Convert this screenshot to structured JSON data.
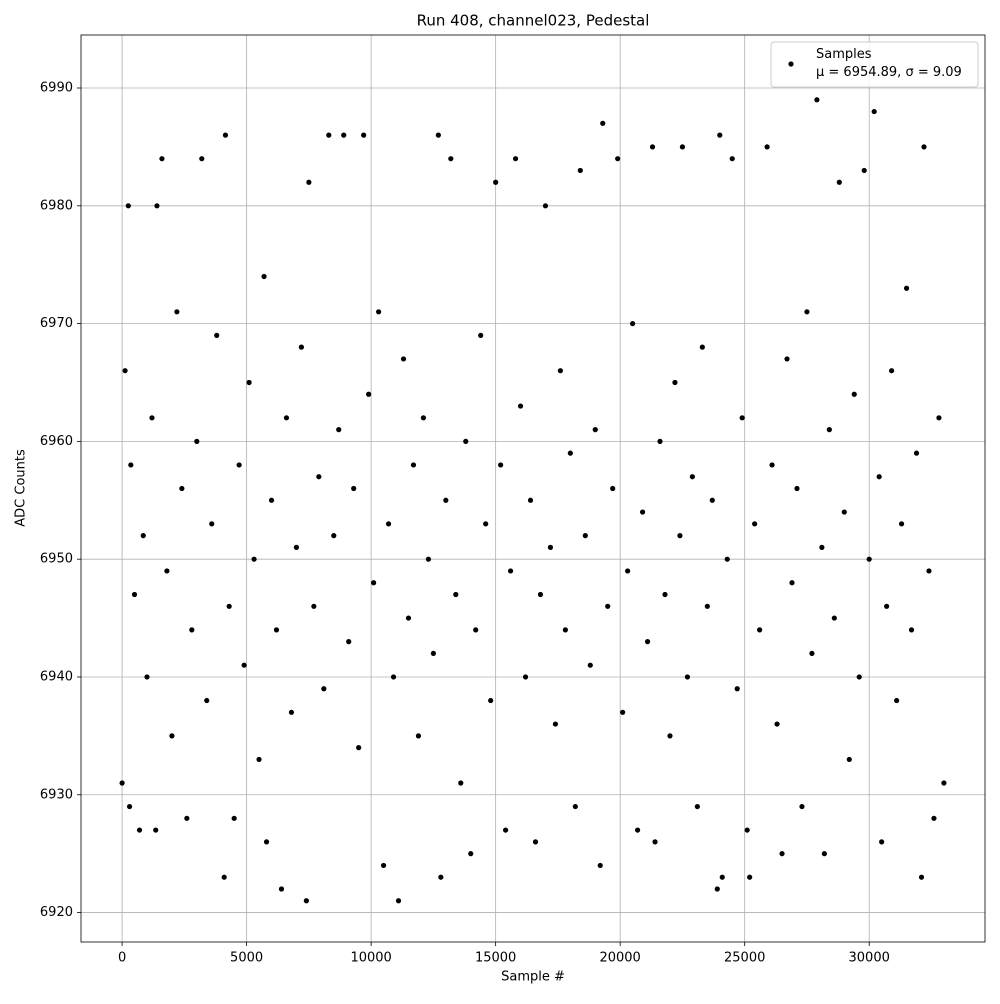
{
  "chart_data": {
    "type": "scatter",
    "title": "Run 408, channel023, Pedestal",
    "xlabel": "Sample #",
    "ylabel": "ADC Counts",
    "xlim": [
      -1650,
      34650
    ],
    "ylim": [
      6917.5,
      6994.5
    ],
    "xticks": [
      0,
      5000,
      10000,
      15000,
      20000,
      25000,
      30000
    ],
    "yticks": [
      6920,
      6930,
      6940,
      6950,
      6960,
      6970,
      6980,
      6990
    ],
    "grid": true,
    "legend": "upper right",
    "series": [
      {
        "name": "Samples\nμ = 6954.89, σ = 9.09",
        "color": "#000000",
        "x": [
          0,
          120,
          250,
          300,
          350,
          500,
          700,
          850,
          1000,
          1200,
          1350,
          1400,
          1600,
          1800,
          2000,
          2200,
          2400,
          2600,
          2800,
          3000,
          3200,
          3400,
          3600,
          3800,
          4100,
          4150,
          4300,
          4500,
          4700,
          4900,
          5100,
          5300,
          5500,
          5700,
          5800,
          6000,
          6200,
          6400,
          6600,
          6800,
          7000,
          7200,
          7400,
          7500,
          7700,
          7900,
          8100,
          8300,
          8500,
          8700,
          8900,
          9100,
          9300,
          9500,
          9700,
          9900,
          10100,
          10300,
          10500,
          10700,
          10900,
          11100,
          11300,
          11500,
          11700,
          11900,
          12100,
          12300,
          12500,
          12700,
          12800,
          13000,
          13200,
          13400,
          13600,
          13800,
          14000,
          14200,
          14400,
          14600,
          14800,
          15000,
          15200,
          15400,
          15600,
          15800,
          16000,
          16200,
          16400,
          16600,
          16800,
          17000,
          17200,
          17400,
          17600,
          17800,
          18000,
          18200,
          18400,
          18600,
          18800,
          19000,
          19200,
          19300,
          19500,
          19700,
          19900,
          20100,
          20300,
          20500,
          20700,
          20900,
          21100,
          21300,
          21400,
          21600,
          21800,
          22000,
          22200,
          22400,
          22500,
          22700,
          22900,
          23100,
          23300,
          23500,
          23700,
          23900,
          24000,
          24100,
          24300,
          24500,
          24700,
          24900,
          25100,
          25200,
          25400,
          25600,
          25900,
          26100,
          26300,
          26500,
          26700,
          26900,
          27100,
          27300,
          27500,
          27700,
          27900,
          28100,
          28200,
          28400,
          28600,
          28800,
          29000,
          29200,
          29400,
          29600,
          29800,
          30000,
          30200,
          30400,
          30500,
          30700,
          30900,
          31100,
          31300,
          31500,
          31700,
          31900,
          32100,
          32200,
          32400,
          32600,
          32800,
          33000
        ],
        "values": [
          6931,
          6966,
          6980,
          6929,
          6958,
          6947,
          6927,
          6952,
          6940,
          6962,
          6927,
          6980,
          6984,
          6949,
          6935,
          6971,
          6956,
          6928,
          6944,
          6960,
          6984,
          6938,
          6953,
          6969,
          6923,
          6986,
          6946,
          6928,
          6958,
          6941,
          6965,
          6950,
          6933,
          6974,
          6926,
          6955,
          6944,
          6922,
          6962,
          6937,
          6951,
          6968,
          6921,
          6982,
          6946,
          6957,
          6939,
          6986,
          6952,
          6961,
          6986,
          6943,
          6956,
          6934,
          6986,
          6964,
          6948,
          6971,
          6924,
          6953,
          6940,
          6921,
          6967,
          6945,
          6958,
          6935,
          6962,
          6950,
          6942,
          6986,
          6923,
          6955,
          6984,
          6947,
          6931,
          6960,
          6925,
          6944,
          6969,
          6953,
          6938,
          6982,
          6958,
          6927,
          6949,
          6984,
          6963,
          6940,
          6955,
          6926,
          6947,
          6980,
          6951,
          6936,
          6966,
          6944,
          6959,
          6929,
          6983,
          6952,
          6941,
          6961,
          6924,
          6987,
          6946,
          6956,
          6984,
          6937,
          6949,
          6970,
          6927,
          6954,
          6943,
          6985,
          6926,
          6960,
          6947,
          6935,
          6965,
          6952,
          6985,
          6940,
          6957,
          6929,
          6968,
          6946,
          6955,
          6922,
          6986,
          6923,
          6950,
          6984,
          6939,
          6962,
          6927,
          6923,
          6953,
          6944,
          6985,
          6958,
          6936,
          6925,
          6967,
          6948,
          6956,
          6929,
          6971,
          6942,
          6989,
          6951,
          6925,
          6961,
          6945,
          6982,
          6954,
          6933,
          6964,
          6940,
          6983,
          6950,
          6988,
          6957,
          6926,
          6946,
          6966,
          6938,
          6953,
          6973,
          6944,
          6959,
          6923,
          6985,
          6949,
          6928,
          6962,
          6931
        ]
      }
    ]
  }
}
